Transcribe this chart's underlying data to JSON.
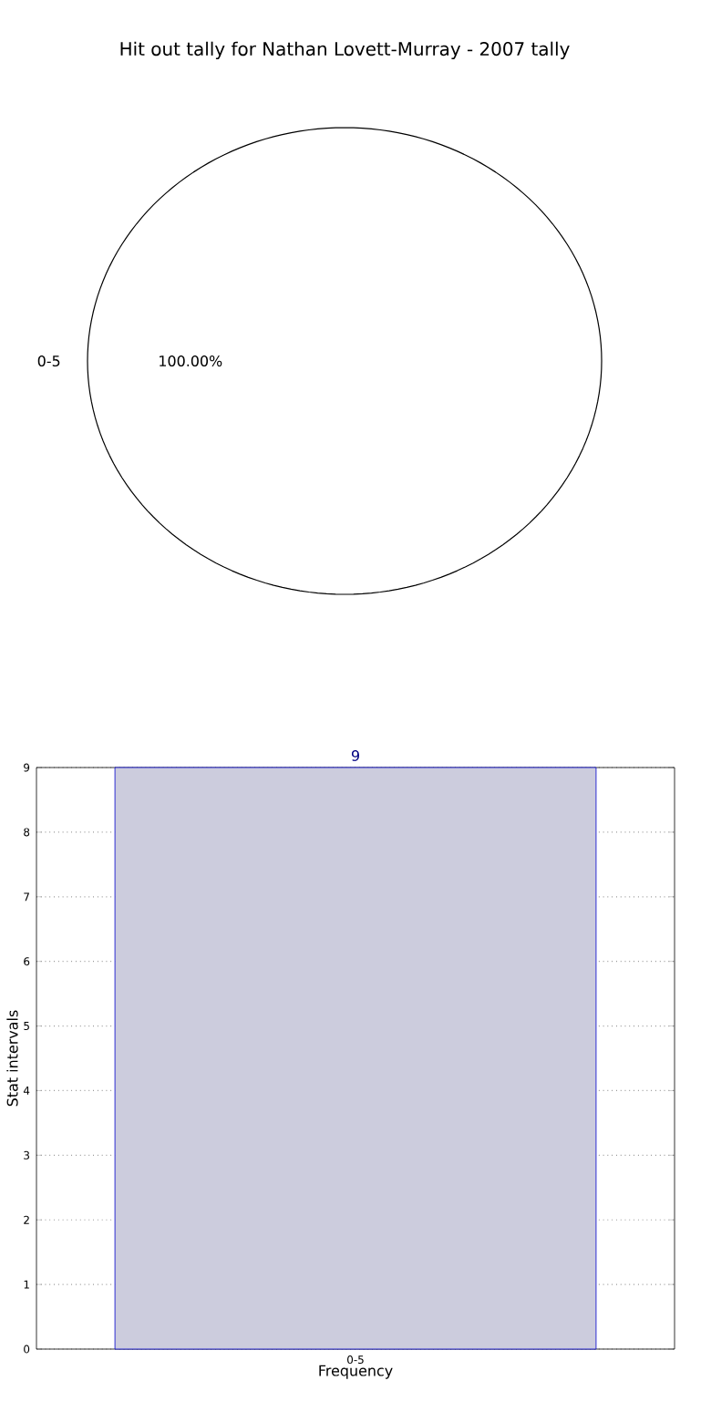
{
  "chart_data": [
    {
      "type": "pie",
      "title": "Hit out tally for Nathan Lovett-Murray - 2007 tally",
      "categories": [
        "0-5"
      ],
      "values": [
        100
      ],
      "colors": [
        "#ffffff"
      ],
      "value_labels": [
        "100.00%"
      ]
    },
    {
      "type": "bar",
      "xlabel": "Frequency",
      "ylabel": "Stat intervals",
      "categories": [
        "0-5"
      ],
      "values": [
        9
      ],
      "color": "#ccccdd",
      "ylim": [
        0,
        9
      ],
      "yticks": [
        0,
        1,
        2,
        3,
        4,
        5,
        6,
        7,
        8,
        9
      ],
      "grid": true,
      "data_labels": true
    }
  ]
}
